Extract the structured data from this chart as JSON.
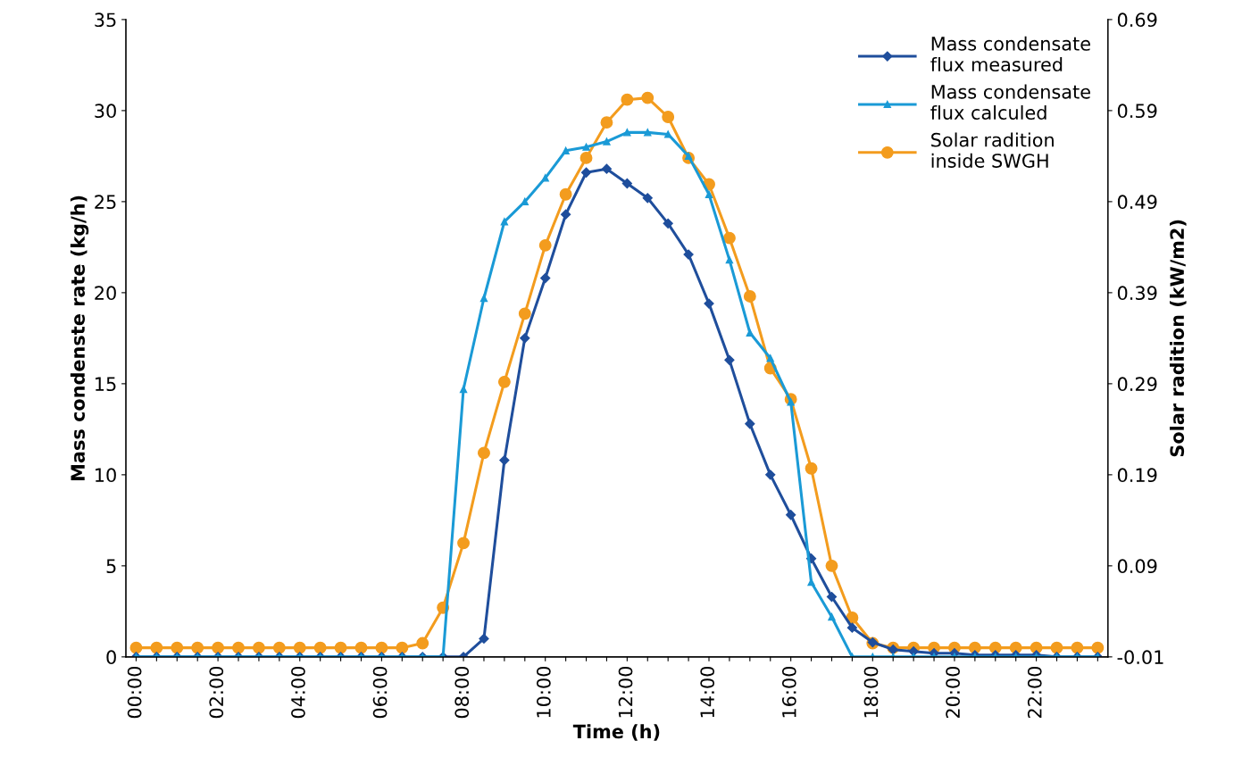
{
  "chart_data": {
    "type": "line",
    "xlabel": "Time (h)",
    "ylabel": "Mass condenste rate (kg/h)",
    "y2label": "Solar radition (kW/m2)",
    "categories": [
      "00:00",
      null,
      null,
      null,
      "02:00",
      null,
      null,
      null,
      "04:00",
      null,
      null,
      null,
      "06:00",
      null,
      null,
      null,
      "08:00",
      null,
      null,
      null,
      "10:00",
      null,
      null,
      null,
      "12:00",
      null,
      null,
      null,
      "14:00",
      null,
      null,
      null,
      "16:00",
      null,
      null,
      null,
      "18:00",
      null,
      null,
      null,
      "20:00",
      null,
      null,
      null,
      "22:00",
      null,
      null,
      null
    ],
    "ylim": [
      0,
      35
    ],
    "yticks": [
      0,
      5,
      10,
      15,
      20,
      25,
      30,
      35
    ],
    "y2lim": [
      -0.01,
      0.69
    ],
    "y2ticks": [
      -0.01,
      0.09,
      0.19,
      0.29,
      0.39,
      0.49,
      0.59,
      0.69
    ],
    "grid": false,
    "legend": "top right",
    "line_style": "solid",
    "series": [
      {
        "name": "Mass condensate\nflux measured",
        "color": "#1f4e9c",
        "marker": "diamond",
        "values": [
          0,
          0,
          0,
          0,
          0,
          0,
          0,
          0,
          0,
          0,
          0,
          0,
          0,
          0,
          0,
          0,
          0,
          1.0,
          10.8,
          17.5,
          20.8,
          24.3,
          26.6,
          26.8,
          26.0,
          25.2,
          23.8,
          22.1,
          19.4,
          16.3,
          12.8,
          10.0,
          7.8,
          5.4,
          3.3,
          1.6,
          0.8,
          0.4,
          0.3,
          0.2,
          0.2,
          0.1,
          0.1,
          0.1,
          0.1,
          0,
          0,
          0
        ]
      },
      {
        "name": "Mass condensate\nflux calculed",
        "color": "#1a9ad6",
        "marker": "triangle",
        "values": [
          0,
          0,
          0,
          0,
          0,
          0,
          0,
          0,
          0,
          0,
          0,
          0,
          0,
          0,
          0,
          0,
          14.7,
          19.7,
          23.9,
          25.0,
          26.3,
          27.8,
          28.0,
          28.3,
          28.8,
          28.8,
          28.7,
          27.5,
          25.4,
          21.8,
          17.8,
          16.4,
          14.0,
          4.1,
          2.2,
          0,
          0,
          0,
          0,
          0,
          0,
          0,
          0,
          0,
          0,
          0,
          0,
          0
        ]
      },
      {
        "name": "Solar radition\ninside SWGH",
        "color": "#f39c1e",
        "marker": "circle",
        "axis": "y2",
        "values": [
          0.0,
          0.0,
          0.0,
          0.0,
          0.0,
          0.0,
          0.0,
          0.0,
          0.0,
          0.0,
          0.0,
          0.0,
          0.0,
          0.0,
          0.005,
          0.044,
          0.115,
          0.214,
          0.292,
          0.367,
          0.442,
          0.498,
          0.538,
          0.577,
          0.602,
          0.604,
          0.583,
          0.538,
          0.509,
          0.45,
          0.386,
          0.307,
          0.273,
          0.197,
          0.09,
          0.033,
          0.005,
          0.0,
          0.0,
          0.0,
          0.0,
          0.0,
          0.0,
          0.0,
          0.0,
          0.0,
          0.0,
          0.0
        ]
      }
    ]
  }
}
